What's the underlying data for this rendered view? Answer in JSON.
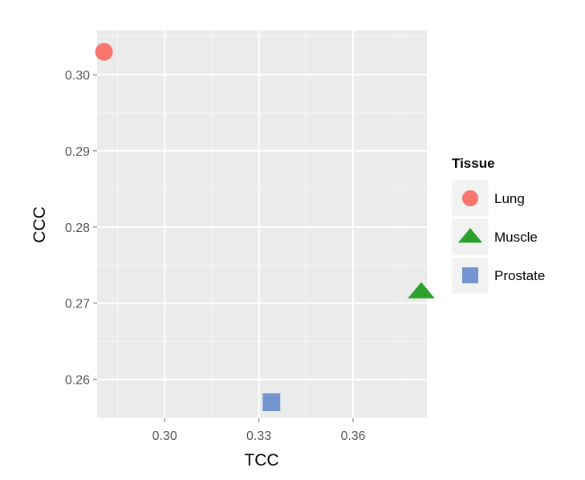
{
  "chart_data": {
    "type": "scatter",
    "title": "",
    "xlabel": "TCC",
    "ylabel": "CCC",
    "xlim": [
      0.2785,
      0.3835
    ],
    "ylim": [
      0.2549,
      0.3058
    ],
    "x_ticks": [
      0.3,
      0.33,
      0.36
    ],
    "x_tick_labels": [
      "0.30",
      "0.33",
      "0.36"
    ],
    "x_minor_ticks": [
      0.285,
      0.315,
      0.345,
      0.375
    ],
    "y_ticks": [
      0.26,
      0.27,
      0.28,
      0.29,
      0.3
    ],
    "y_tick_labels": [
      "0.26",
      "0.27",
      "0.28",
      "0.29",
      "0.30"
    ],
    "y_minor_ticks": [
      0.255,
      0.265,
      0.275,
      0.285,
      0.295,
      0.305
    ],
    "grid": true,
    "legend": {
      "title": "Tissue",
      "position": "right",
      "entries": [
        {
          "label": "Lung",
          "shape": "circle",
          "color": "#F8766D"
        },
        {
          "label": "Muscle",
          "shape": "triangle",
          "color": "#2CA02C"
        },
        {
          "label": "Prostate",
          "shape": "square",
          "color": "#7394CF"
        }
      ]
    },
    "series": [
      {
        "name": "Lung",
        "shape": "circle",
        "color": "#F8766D",
        "points": [
          {
            "x": 0.2807,
            "y": 0.303
          }
        ]
      },
      {
        "name": "Muscle",
        "shape": "triangle",
        "color": "#2CA02C",
        "points": [
          {
            "x": 0.3817,
            "y": 0.2715
          }
        ]
      },
      {
        "name": "Prostate",
        "shape": "square",
        "color": "#7394CF",
        "points": [
          {
            "x": 0.334,
            "y": 0.257
          }
        ]
      }
    ],
    "panel_color": "#EBEBEB",
    "grid_color": "#FFFFFF"
  }
}
